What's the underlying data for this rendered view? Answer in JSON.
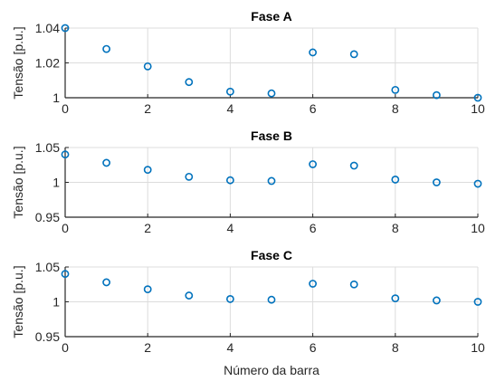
{
  "chart_data": [
    {
      "type": "scatter",
      "title": "Fase A",
      "ylabel": "Tensão [p.u.]",
      "xlabel": "",
      "xlim": [
        0,
        10
      ],
      "ylim": [
        1.0,
        1.04
      ],
      "xticks": [
        "0",
        "2",
        "4",
        "6",
        "8",
        "10"
      ],
      "yticks": [
        "1",
        "1.02",
        "1.04"
      ],
      "grid": true,
      "x": [
        0,
        1,
        2,
        3,
        4,
        5,
        6,
        7,
        8,
        9,
        10
      ],
      "y": [
        1.04,
        1.028,
        1.018,
        1.009,
        1.0035,
        1.0025,
        1.026,
        1.025,
        1.0045,
        1.0015,
        1.0
      ]
    },
    {
      "type": "scatter",
      "title": "Fase B",
      "ylabel": "Tensão [p.u.]",
      "xlabel": "",
      "xlim": [
        0,
        10
      ],
      "ylim": [
        0.95,
        1.05
      ],
      "xticks": [
        "0",
        "2",
        "4",
        "6",
        "8",
        "10"
      ],
      "yticks": [
        "0.95",
        "1",
        "1.05"
      ],
      "grid": true,
      "x": [
        0,
        1,
        2,
        3,
        4,
        5,
        6,
        7,
        8,
        9,
        10
      ],
      "y": [
        1.04,
        1.028,
        1.018,
        1.008,
        1.003,
        1.002,
        1.026,
        1.024,
        1.004,
        1.0,
        0.998
      ]
    },
    {
      "type": "scatter",
      "title": "Fase C",
      "ylabel": "Tensão [p.u.]",
      "xlabel": "Número da barra",
      "xlim": [
        0,
        10
      ],
      "ylim": [
        0.95,
        1.05
      ],
      "xticks": [
        "0",
        "2",
        "4",
        "6",
        "8",
        "10"
      ],
      "yticks": [
        "0.95",
        "1",
        "1.05"
      ],
      "grid": true,
      "x": [
        0,
        1,
        2,
        3,
        4,
        5,
        6,
        7,
        8,
        9,
        10
      ],
      "y": [
        1.04,
        1.028,
        1.018,
        1.009,
        1.004,
        1.003,
        1.026,
        1.025,
        1.005,
        1.002,
        1.0
      ]
    }
  ],
  "colors": {
    "marker": "#0072BD",
    "grid": "#dcdcdc",
    "axis": "#262626"
  }
}
